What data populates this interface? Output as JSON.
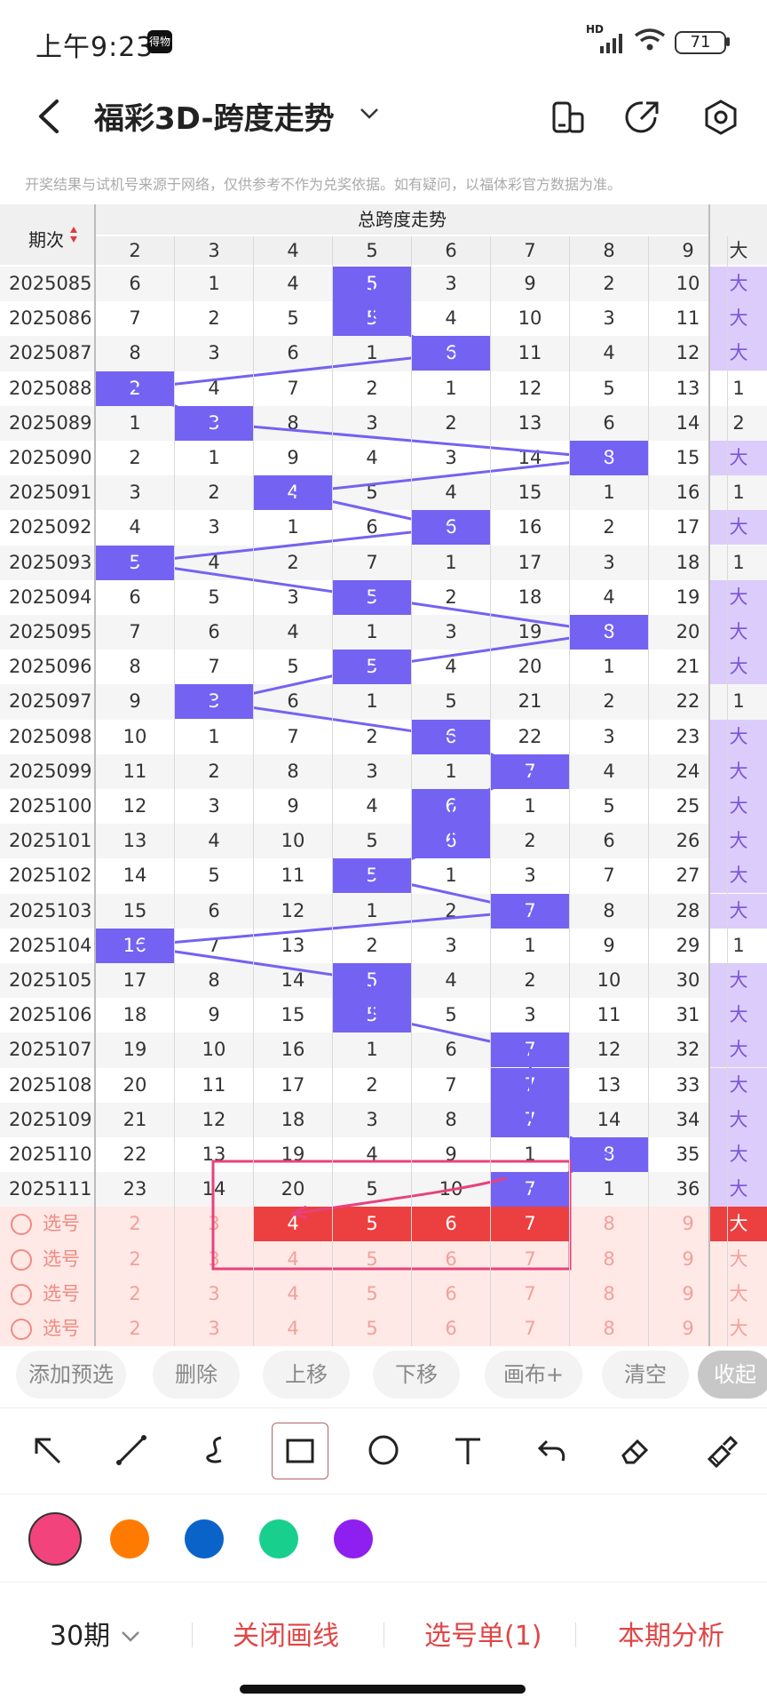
{
  "status": {
    "time": "上午9:23",
    "badge": "得物",
    "hd": "HD",
    "battery": "71"
  },
  "header": {
    "title": "福彩3D-跨度走势"
  },
  "notice": "开奖结果与试机号来源于网络，仅供参考不作为兑奖依据。如有疑问，以福体彩官方数据为准。",
  "table": {
    "period_header": "期次",
    "group_header": "总跨度走势",
    "columns": [
      "2",
      "3",
      "4",
      "5",
      "6",
      "7",
      "8",
      "9"
    ],
    "extra_column": "大",
    "rows": [
      {
        "period": "2025085",
        "cells": [
          "6",
          "1",
          "4",
          "5",
          "3",
          "9",
          "2",
          "10"
        ],
        "big": "大"
      },
      {
        "period": "2025086",
        "cells": [
          "7",
          "2",
          "5",
          "5",
          "4",
          "10",
          "3",
          "11"
        ],
        "big": "大"
      },
      {
        "period": "2025087",
        "cells": [
          "8",
          "3",
          "6",
          "1",
          "6",
          "11",
          "4",
          "12"
        ],
        "big": "大"
      },
      {
        "period": "2025088",
        "cells": [
          "2",
          "4",
          "7",
          "2",
          "1",
          "12",
          "5",
          "13"
        ],
        "big": "1"
      },
      {
        "period": "2025089",
        "cells": [
          "1",
          "3",
          "8",
          "3",
          "2",
          "13",
          "6",
          "14"
        ],
        "big": "2"
      },
      {
        "period": "2025090",
        "cells": [
          "2",
          "1",
          "9",
          "4",
          "3",
          "14",
          "8",
          "15"
        ],
        "big": "大"
      },
      {
        "period": "2025091",
        "cells": [
          "3",
          "2",
          "4",
          "5",
          "4",
          "15",
          "1",
          "16"
        ],
        "big": "1"
      },
      {
        "period": "2025092",
        "cells": [
          "4",
          "3",
          "1",
          "6",
          "6",
          "16",
          "2",
          "17"
        ],
        "big": "大"
      },
      {
        "period": "2025093",
        "cells": [
          "5",
          "4",
          "2",
          "7",
          "1",
          "17",
          "3",
          "18"
        ],
        "big": "1"
      },
      {
        "period": "2025094",
        "cells": [
          "6",
          "5",
          "3",
          "5",
          "2",
          "18",
          "4",
          "19"
        ],
        "big": "大"
      },
      {
        "period": "2025095",
        "cells": [
          "7",
          "6",
          "4",
          "1",
          "3",
          "19",
          "8",
          "20"
        ],
        "big": "大"
      },
      {
        "period": "2025096",
        "cells": [
          "8",
          "7",
          "5",
          "5",
          "4",
          "20",
          "1",
          "21"
        ],
        "big": "大"
      },
      {
        "period": "2025097",
        "cells": [
          "9",
          "3",
          "6",
          "1",
          "5",
          "21",
          "2",
          "22"
        ],
        "big": "1"
      },
      {
        "period": "2025098",
        "cells": [
          "10",
          "1",
          "7",
          "2",
          "6",
          "22",
          "3",
          "23"
        ],
        "big": "大"
      },
      {
        "period": "2025099",
        "cells": [
          "11",
          "2",
          "8",
          "3",
          "1",
          "7",
          "4",
          "24"
        ],
        "big": "大"
      },
      {
        "period": "2025100",
        "cells": [
          "12",
          "3",
          "9",
          "4",
          "6",
          "1",
          "5",
          "25"
        ],
        "big": "大"
      },
      {
        "period": "2025101",
        "cells": [
          "13",
          "4",
          "10",
          "5",
          "6",
          "2",
          "6",
          "26"
        ],
        "big": "大"
      },
      {
        "period": "2025102",
        "cells": [
          "14",
          "5",
          "11",
          "5",
          "1",
          "3",
          "7",
          "27"
        ],
        "big": "大"
      },
      {
        "period": "2025103",
        "cells": [
          "15",
          "6",
          "12",
          "1",
          "2",
          "7",
          "8",
          "28"
        ],
        "big": "大"
      },
      {
        "period": "2025104",
        "cells": [
          "16",
          "7",
          "13",
          "2",
          "3",
          "1",
          "9",
          "29"
        ],
        "big": "1"
      },
      {
        "period": "2025105",
        "cells": [
          "17",
          "8",
          "14",
          "5",
          "4",
          "2",
          "10",
          "30"
        ],
        "big": "大"
      },
      {
        "period": "2025106",
        "cells": [
          "18",
          "9",
          "15",
          "5",
          "5",
          "3",
          "11",
          "31"
        ],
        "big": "大"
      },
      {
        "period": "2025107",
        "cells": [
          "19",
          "10",
          "16",
          "1",
          "6",
          "7",
          "12",
          "32"
        ],
        "big": "大"
      },
      {
        "period": "2025108",
        "cells": [
          "20",
          "11",
          "17",
          "2",
          "7",
          "7",
          "13",
          "33"
        ],
        "big": "大"
      },
      {
        "period": "2025109",
        "cells": [
          "21",
          "12",
          "18",
          "3",
          "8",
          "7",
          "14",
          "34"
        ],
        "big": "大"
      },
      {
        "period": "2025110",
        "cells": [
          "22",
          "13",
          "19",
          "4",
          "9",
          "1",
          "8",
          "35"
        ],
        "big": "大"
      },
      {
        "period": "2025111",
        "cells": [
          "23",
          "14",
          "20",
          "5",
          "10",
          "7",
          "1",
          "36"
        ],
        "big": "大"
      }
    ],
    "hits": [
      3,
      3,
      4,
      0,
      1,
      6,
      2,
      4,
      0,
      3,
      6,
      3,
      1,
      4,
      5,
      4,
      4,
      3,
      5,
      0,
      3,
      3,
      5,
      5,
      5,
      6,
      5
    ],
    "pick_label": "选号",
    "pick_rows": 4,
    "pick_values": [
      "2",
      "3",
      "4",
      "5",
      "6",
      "7",
      "8",
      "9"
    ],
    "pick_big": "大"
  },
  "chips": [
    "添加预选",
    "删除",
    "上移",
    "下移",
    "画布+",
    "清空",
    "收起"
  ],
  "tool_icons": [
    "arrow-tool-icon",
    "line-tool-icon",
    "curve-tool-icon",
    "rect-tool-icon",
    "circle-tool-icon",
    "text-tool-icon",
    "undo-icon",
    "eraser-icon",
    "clear-brush-icon"
  ],
  "colors": [
    "#f2437d",
    "#ff7a00",
    "#0a63c9",
    "#19cf8e",
    "#8e1ff0"
  ],
  "bottom": {
    "period_select": "30期",
    "close_line": "关闭画线",
    "pick_list": "选号单(1)",
    "analysis": "本期分析"
  }
}
